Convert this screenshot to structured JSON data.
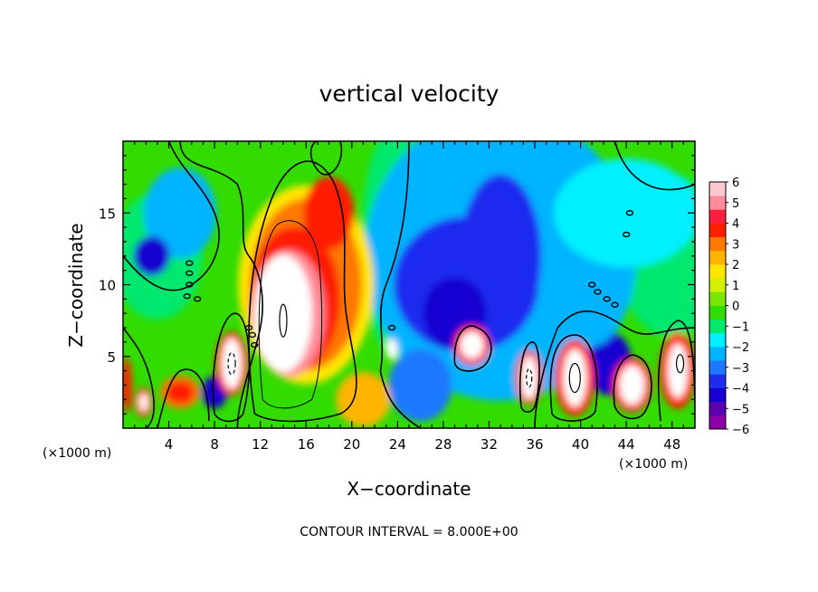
{
  "chart_data": {
    "type": "heatmap",
    "title": "vertical velocity",
    "xlabel": "X−coordinate",
    "ylabel": "Z−coordinate",
    "x_unit": "(×1000 m)",
    "y_unit": "(×1000 m)",
    "xlim": [
      0,
      50
    ],
    "ylim": [
      0,
      20
    ],
    "x_ticks": [
      4,
      8,
      12,
      16,
      20,
      24,
      28,
      32,
      36,
      40,
      44,
      48
    ],
    "y_ticks": [
      5,
      10,
      15
    ],
    "colorbar": {
      "range": [
        -6,
        6
      ],
      "labels": [
        "6",
        "5",
        "4",
        "3",
        "2",
        "1",
        "0",
        "−1",
        "−2",
        "−3",
        "−4",
        "−5",
        "−6"
      ],
      "colors": [
        "#8b00a8",
        "#5c00b0",
        "#1800d2",
        "#1e2cf0",
        "#1e78ff",
        "#00b4ff",
        "#00f0ff",
        "#00e86e",
        "#32dc00",
        "#78e600",
        "#d2f000",
        "#ffe600",
        "#ffb400",
        "#ff7800",
        "#ff1e00",
        "#ff1e3c",
        "#ff8c9a",
        "#ffc8d0"
      ]
    },
    "footer": "CONTOUR INTERVAL = 8.000E+00",
    "features": [
      {
        "type": "updraft",
        "x": 14,
        "z": 9,
        "peak": 6
      },
      {
        "type": "updraft",
        "x": 18,
        "z": 14,
        "peak": 5
      },
      {
        "type": "updraft",
        "x": 9.5,
        "z": 4.5,
        "peak": 6
      },
      {
        "type": "updraft",
        "x": 39.5,
        "z": 3.5,
        "peak": 6
      },
      {
        "type": "updraft",
        "x": 44.5,
        "z": 3,
        "peak": 6
      },
      {
        "type": "updraft",
        "x": 48.5,
        "z": 4,
        "peak": 6
      },
      {
        "type": "updraft",
        "x": 35.5,
        "z": 3.5,
        "peak": 6
      },
      {
        "type": "updraft",
        "x": 30.5,
        "z": 5.8,
        "peak": 6
      },
      {
        "type": "updraft",
        "x": 5,
        "z": 2.5,
        "peak": 3
      },
      {
        "type": "updraft",
        "x": 1.8,
        "z": 1.8,
        "peak": 5
      },
      {
        "type": "updraft",
        "x": 23.5,
        "z": 5.5,
        "peak": 6
      },
      {
        "type": "downdraft",
        "x": 29.5,
        "z": 9.5,
        "peak": -5
      },
      {
        "type": "downdraft",
        "x": 33,
        "z": 13,
        "peak": -4
      },
      {
        "type": "downdraft",
        "x": 2.5,
        "z": 12,
        "peak": -5
      },
      {
        "type": "downdraft",
        "x": 26,
        "z": 3,
        "peak": -4
      },
      {
        "type": "downdraft",
        "x": 42.5,
        "z": 4.5,
        "peak": -5
      },
      {
        "type": "downdraft",
        "x": 8,
        "z": 2.5,
        "peak": -4
      }
    ]
  }
}
